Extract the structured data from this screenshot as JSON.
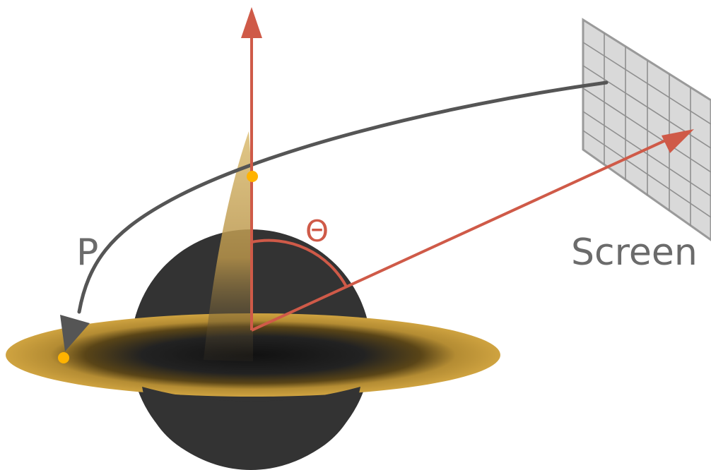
{
  "labels": {
    "ray": "P",
    "angle": "Θ",
    "screen": "Screen"
  },
  "colors": {
    "background": "#ffffff",
    "black_hole": "#333333",
    "disk": "#c9a23f",
    "disk_inner": "#1a1a1a",
    "jet": "#d9b76a",
    "axis_arrow": "#cf5a48",
    "ray_path": "#555555",
    "ray_arrow_head": "#5a5a5a",
    "highlight_point": "#ffb300",
    "screen_fill": "#d9d9d9",
    "screen_grid": "#8f8f8f",
    "label_gray": "#6b6b6b"
  },
  "icons": {
    "black_hole": "black-hole-sphere",
    "accretion_disk": "accretion-disk-ring",
    "jet": "polar-jet",
    "screen": "grid-screen"
  }
}
